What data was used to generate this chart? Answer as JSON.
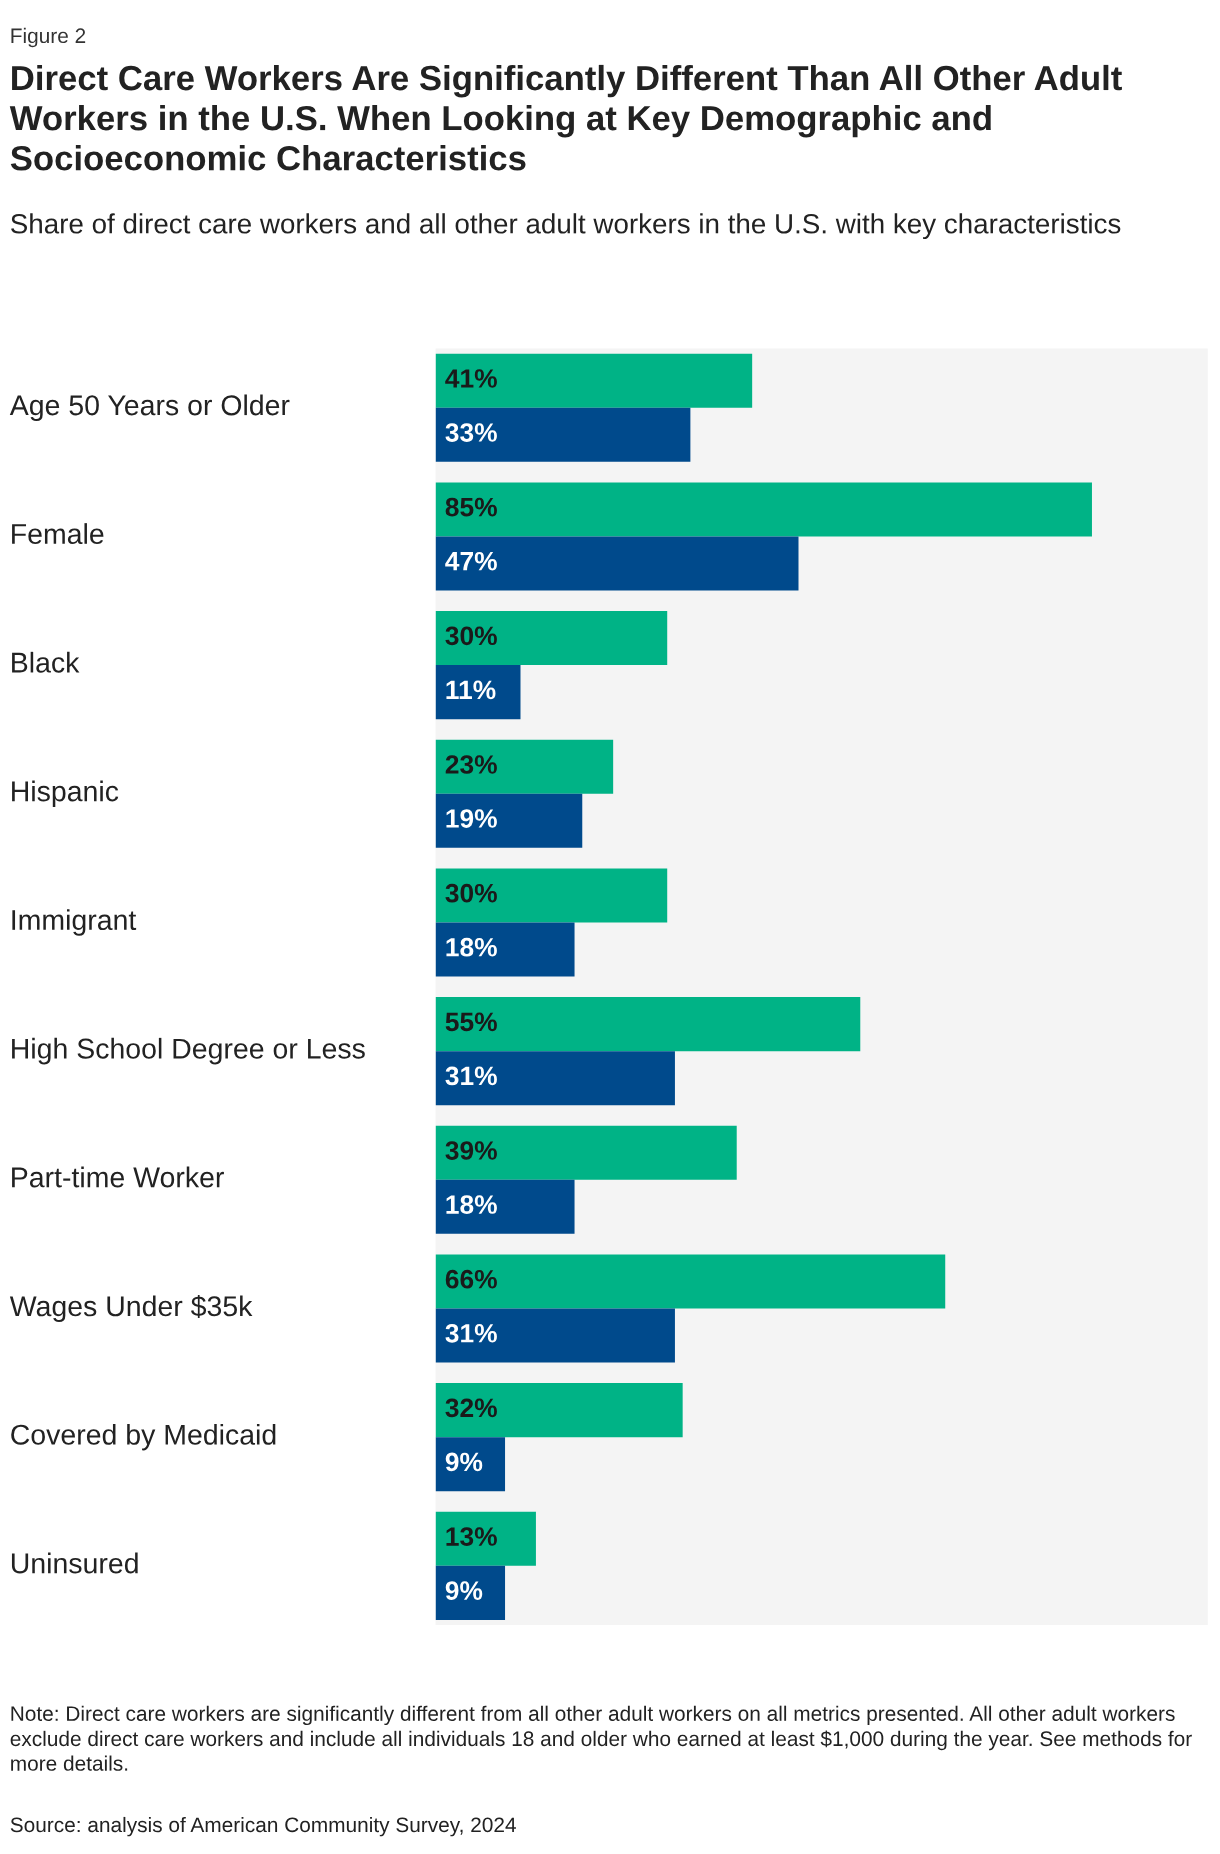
{
  "chart_data": {
    "type": "bar",
    "orientation": "horizontal",
    "title": "Direct Care Workers Are Significantly Different Than All Other Adult Workers in the U.S. When Looking at Key Demographic and Socioeconomic Characteristics",
    "subtitle": "Share of direct care workers and all other adult workers in the U.S. with key characteristics",
    "categories": [
      "Age 50 Years or Older",
      "Female",
      "Black",
      "Hispanic",
      "Immigrant",
      "High School Degree or Less",
      "Part-time Worker",
      "Wages Under $35k",
      "Covered by Medicaid",
      "Uninsured"
    ],
    "series": [
      {
        "color": "#00b386",
        "values": [
          41,
          85,
          30,
          23,
          30,
          55,
          39,
          66,
          32,
          13
        ],
        "value_labels": [
          "41%",
          "85%",
          "30%",
          "23%",
          "30%",
          "55%",
          "39%",
          "66%",
          "32%",
          "13%"
        ]
      },
      {
        "color": "#004a8c",
        "values": [
          33,
          47,
          11,
          19,
          18,
          31,
          18,
          31,
          9,
          9
        ],
        "value_labels": [
          "33%",
          "47%",
          "11%",
          "19%",
          "18%",
          "31%",
          "18%",
          "31%",
          "9%",
          "9%"
        ]
      }
    ],
    "xlim": [
      0,
      100
    ],
    "tick_labels": "y",
    "grid": false,
    "legend": false,
    "annotations": [
      "Figure 2",
      "Note: Direct care workers are significantly different from all other adult workers on all metrics presented. All other adult workers exclude direct care workers and include all individuals 18 and older who earned at least $1,000 during the year. See methods for more details.",
      "Source: analysis of American Community Survey, 2024"
    ]
  }
}
